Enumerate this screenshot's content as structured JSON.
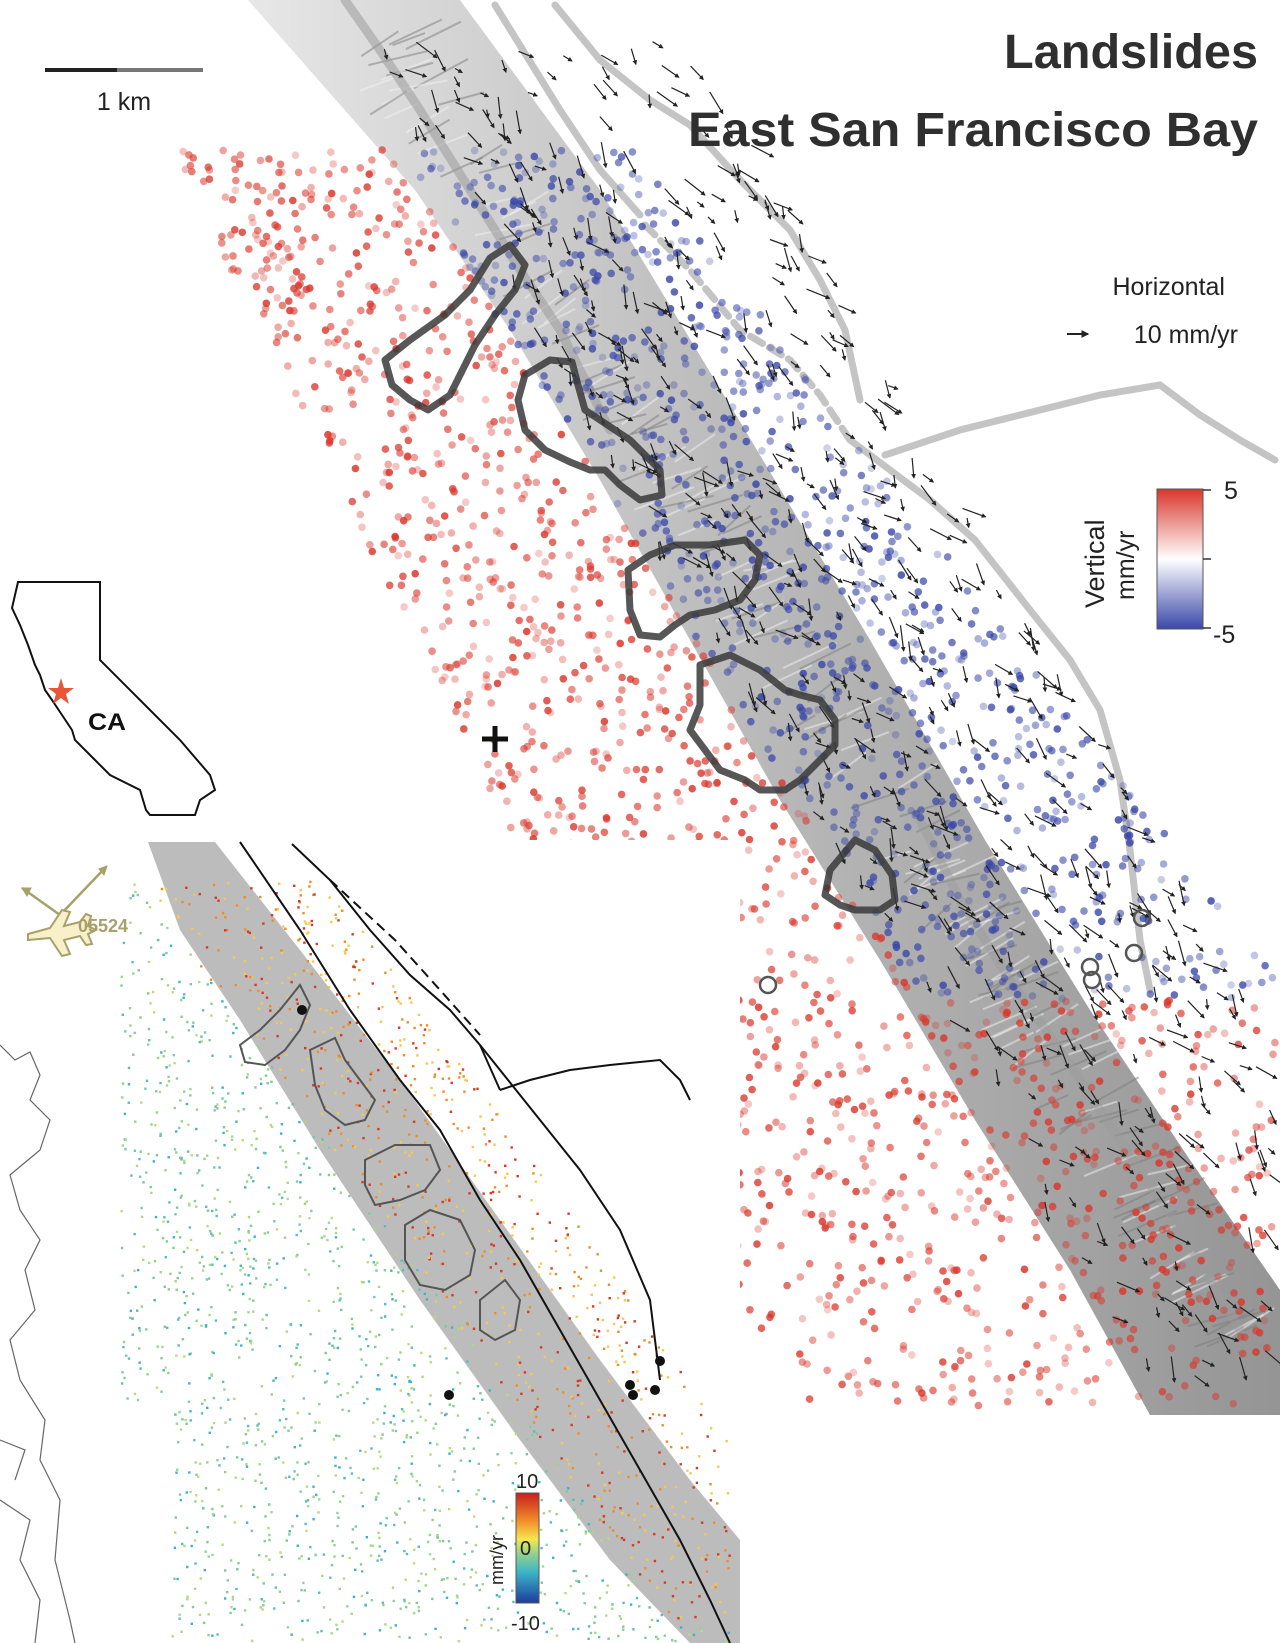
{
  "title": {
    "line1": "Landslides",
    "line2": "East San Francisco Bay"
  },
  "scale_bar": {
    "label": "1 km"
  },
  "legend_horizontal": {
    "title": "Horizontal",
    "arrow_label": "10 mm/yr"
  },
  "legend_vertical": {
    "title": "Vertical",
    "unit": "mm/yr",
    "max_label": "5",
    "min_label": "-5",
    "colors": [
      "#d9372c",
      "#ffffff",
      "#3a48a8"
    ]
  },
  "inset_state": {
    "label": "CA",
    "marker_color": "#e8563a"
  },
  "satellite": {
    "track_label": "05524",
    "color": "#a8a06a"
  },
  "inset_colorbar": {
    "unit": "mm/yr",
    "max_label": "10",
    "zero_label": "0",
    "min_label": "-10",
    "colors": [
      "#c81e1e",
      "#f08c28",
      "#f5e650",
      "#96d28c",
      "#3cb4c8",
      "#1e3c9c"
    ]
  },
  "colors": {
    "title_text": "#2f2f2f",
    "fault_lines": "#c4c4c4",
    "landslide_outline": "#3a3a3a",
    "relief": "#a9a9a9"
  }
}
